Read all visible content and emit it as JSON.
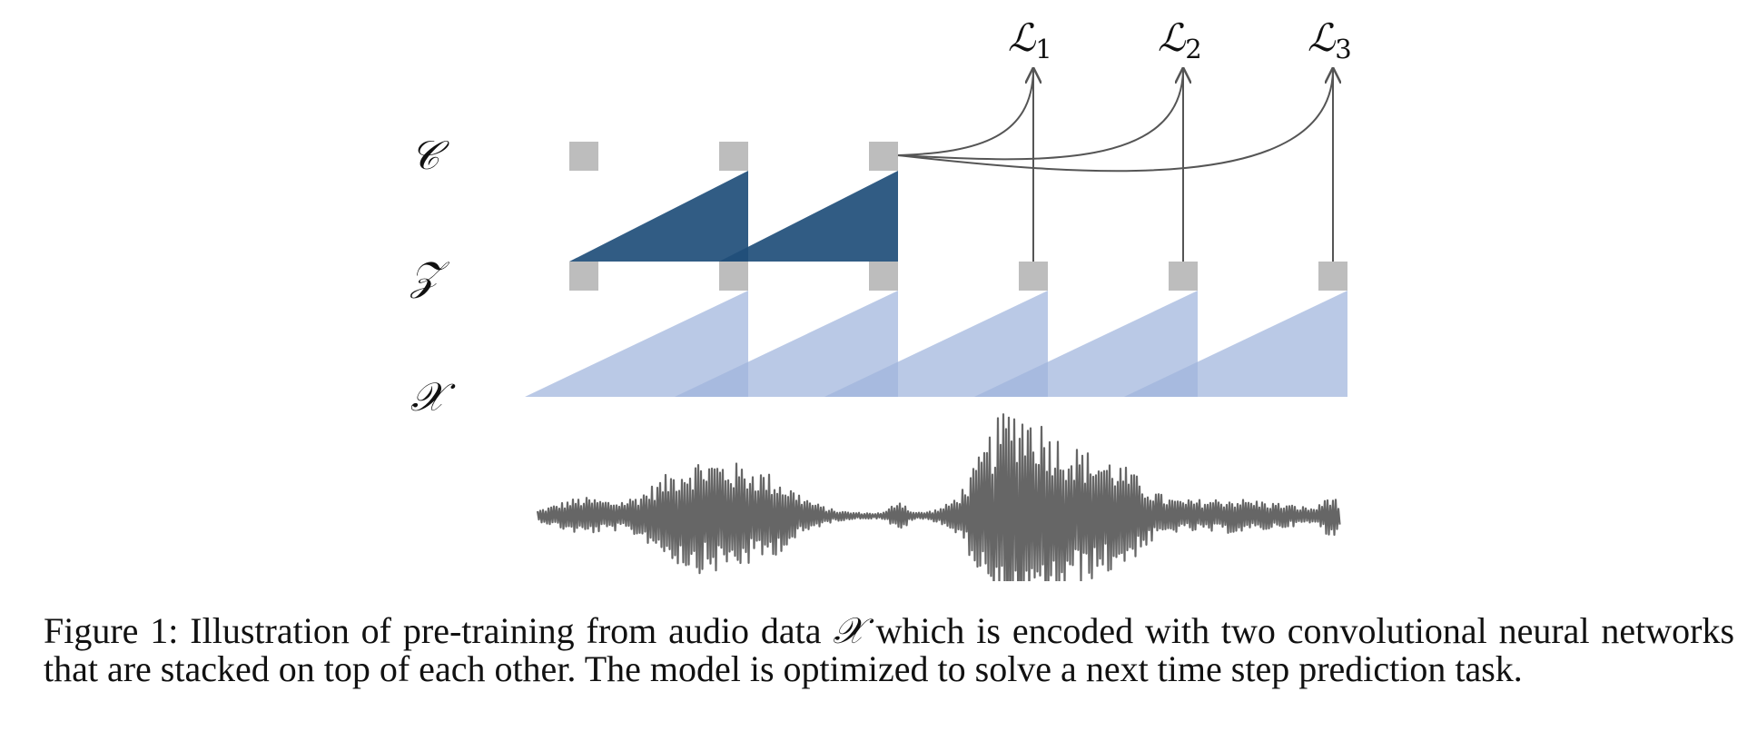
{
  "rows": {
    "context": "𝒞",
    "latent": "𝒵",
    "input": "𝒳"
  },
  "losses": [
    {
      "symbol": "ℒ",
      "index": "1"
    },
    {
      "symbol": "ℒ",
      "index": "2"
    },
    {
      "symbol": "ℒ",
      "index": "3"
    }
  ],
  "caption": {
    "label": "Figure 1:",
    "text_before": "Illustration of pre-training from audio data",
    "symbol": "𝒳",
    "text_after": "which is encoded with two convolutional neural networks that are stacked on top of each other. The model is optimized to solve a next time step prediction task."
  },
  "colors": {
    "node": "#bdbdbd",
    "context_network": "#1f4e79",
    "encoder_network": "#9fb4dc",
    "waveform": "#666666",
    "arrow": "#555555"
  }
}
